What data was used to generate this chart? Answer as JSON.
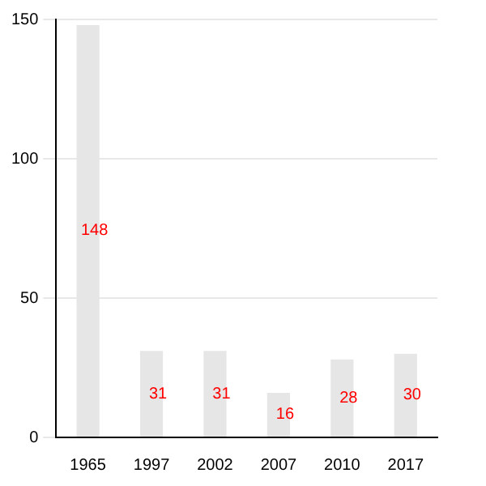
{
  "chart_data": {
    "type": "bar",
    "categories": [
      "1965",
      "1997",
      "2002",
      "2007",
      "2010",
      "2017"
    ],
    "values": [
      148,
      31,
      31,
      16,
      28,
      30
    ],
    "color": "#e6e6e6",
    "ylim": [
      0,
      150
    ],
    "yticks": [
      0,
      50,
      100,
      150
    ],
    "grid": "y",
    "data_labels": true
  }
}
